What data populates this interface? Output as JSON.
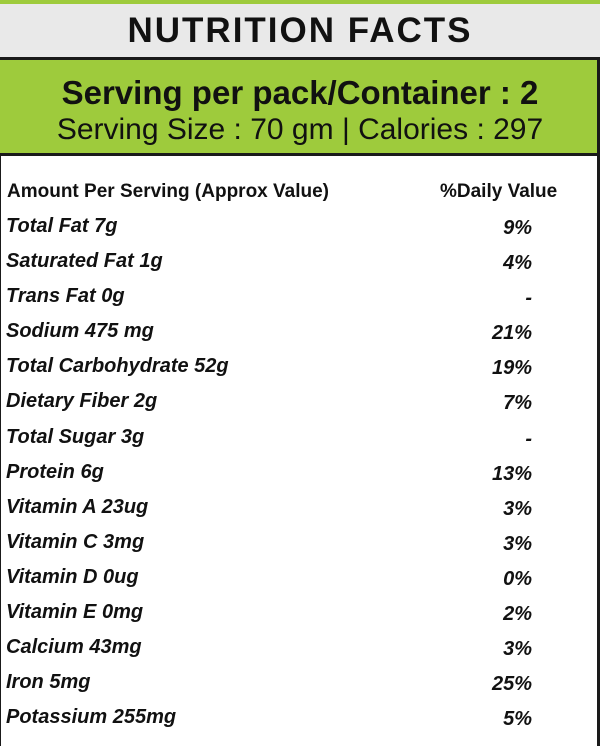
{
  "title": "NUTRITION FACTS",
  "serving": {
    "per_pack": "Serving per pack/Container : 2",
    "size_calories": "Serving Size : 70 gm | Calories : 297"
  },
  "table": {
    "header_left": "Amount Per Serving (Approx Value)",
    "header_right": "%Daily Value",
    "rows": [
      {
        "name": "Total Fat 7g",
        "dv": "9%"
      },
      {
        "name": "Saturated Fat 1g",
        "dv": "4%"
      },
      {
        "name": "Trans Fat 0g",
        "dv": "-"
      },
      {
        "name": "Sodium 475 mg",
        "dv": "21%"
      },
      {
        "name": "Total Carbohydrate 52g",
        "dv": "19%"
      },
      {
        "name": "Dietary Fiber 2g",
        "dv": "7%"
      },
      {
        "name": "Total Sugar 3g",
        "dv": "-"
      },
      {
        "name": "Protein 6g",
        "dv": "13%"
      },
      {
        "name": "Vitamin A 23ug",
        "dv": "3%"
      },
      {
        "name": "Vitamin C 3mg",
        "dv": "3%"
      },
      {
        "name": "Vitamin D 0ug",
        "dv": "0%"
      },
      {
        "name": "Vitamin E 0mg",
        "dv": "2%"
      },
      {
        "name": "Calcium 43mg",
        "dv": "3%"
      },
      {
        "name": "Iron 5mg",
        "dv": "25%"
      },
      {
        "name": "Potassium 255mg",
        "dv": "5%"
      }
    ]
  },
  "colors": {
    "accent_green": "#9ecb3c",
    "title_bar_gray": "#e9e9e9",
    "rule": "#1a1a1a"
  }
}
